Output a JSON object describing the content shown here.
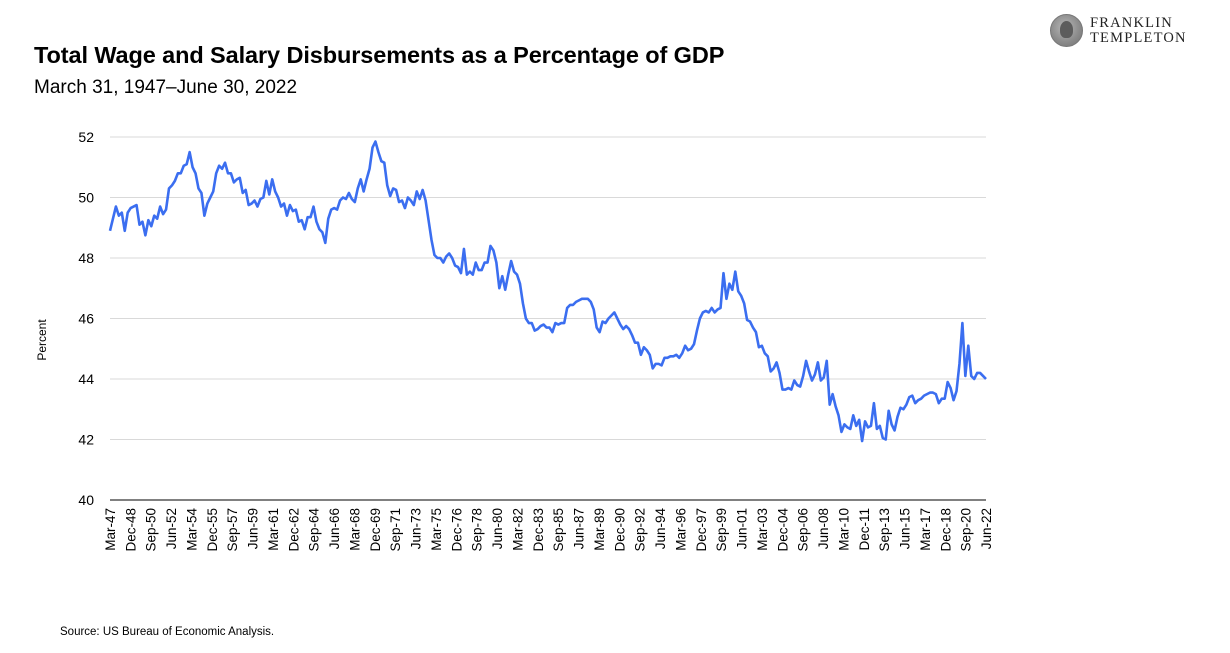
{
  "header": {
    "title": "Total Wage and Salary Disbursements as a Percentage of GDP",
    "subtitle": "March 31, 1947–June 30, 2022"
  },
  "logo": {
    "line1": "FRANKLIN",
    "line2": "TEMPLETON"
  },
  "footer": {
    "source": "Source: US Bureau of Economic Analysis."
  },
  "colors": {
    "line": "#3b6ef0",
    "grid": "#d9d9d9",
    "axis": "#000000"
  },
  "chart_data": {
    "type": "line",
    "title": "Total Wage and Salary Disbursements as a Percentage of GDP",
    "subtitle": "March 31, 1947–June 30, 2022",
    "xlabel": "",
    "ylabel": "Percent",
    "ylim": [
      40,
      52
    ],
    "yticks": [
      40,
      42,
      44,
      46,
      48,
      50,
      52
    ],
    "grid": true,
    "x_tick_labels": [
      "Mar-47",
      "Dec-48",
      "Sep-50",
      "Jun-52",
      "Mar-54",
      "Dec-55",
      "Sep-57",
      "Jun-59",
      "Mar-61",
      "Dec-62",
      "Sep-64",
      "Jun-66",
      "Mar-68",
      "Dec-69",
      "Sep-71",
      "Jun-73",
      "Mar-75",
      "Dec-76",
      "Sep-78",
      "Jun-80",
      "Mar-82",
      "Dec-83",
      "Sep-85",
      "Jun-87",
      "Mar-89",
      "Dec-90",
      "Sep-92",
      "Jun-94",
      "Mar-96",
      "Dec-97",
      "Sep-99",
      "Jun-01",
      "Mar-03",
      "Dec-04",
      "Sep-06",
      "Jun-08",
      "Mar-10",
      "Dec-11",
      "Sep-13",
      "Jun-15",
      "Mar-17",
      "Dec-18",
      "Sep-20",
      "Jun-22"
    ],
    "series": [
      {
        "x_range": [
          "1947-03-31",
          "2022-06-30"
        ],
        "values": [
          48.9,
          49.3,
          49.7,
          49.4,
          49.5,
          48.9,
          49.5,
          49.65,
          49.7,
          49.75,
          49.1,
          49.2,
          48.75,
          49.25,
          49.05,
          49.4,
          49.3,
          49.7,
          49.45,
          49.6,
          50.3,
          50.4,
          50.55,
          50.8,
          50.8,
          51.05,
          51.1,
          51.5,
          51.0,
          50.8,
          50.3,
          50.15,
          49.4,
          49.8,
          50.0,
          50.2,
          50.8,
          51.05,
          50.95,
          51.15,
          50.8,
          50.8,
          50.5,
          50.6,
          50.65,
          50.15,
          50.25,
          49.75,
          49.8,
          49.9,
          49.7,
          49.95,
          50.0,
          50.55,
          50.1,
          50.6,
          50.2,
          50.0,
          49.7,
          49.8,
          49.4,
          49.75,
          49.55,
          49.6,
          49.2,
          49.25,
          48.95,
          49.35,
          49.35,
          49.7,
          49.2,
          48.95,
          48.85,
          48.5,
          49.3,
          49.6,
          49.65,
          49.6,
          49.9,
          50.0,
          49.95,
          50.15,
          49.95,
          49.85,
          50.3,
          50.6,
          50.2,
          50.6,
          50.95,
          51.65,
          51.85,
          51.5,
          51.2,
          51.15,
          50.4,
          50.05,
          50.3,
          50.25,
          49.85,
          49.9,
          49.65,
          50.0,
          49.9,
          49.75,
          50.2,
          49.95,
          50.25,
          49.9,
          49.25,
          48.6,
          48.1,
          48.0,
          48.0,
          47.85,
          48.05,
          48.15,
          48.0,
          47.75,
          47.7,
          47.5,
          48.3,
          47.45,
          47.55,
          47.45,
          47.85,
          47.6,
          47.6,
          47.85,
          47.85,
          48.4,
          48.25,
          47.85,
          47.0,
          47.4,
          46.95,
          47.45,
          47.9,
          47.55,
          47.45,
          47.15,
          46.5,
          46.0,
          45.85,
          45.85,
          45.6,
          45.65,
          45.75,
          45.8,
          45.7,
          45.7,
          45.55,
          45.85,
          45.8,
          45.85,
          45.85,
          46.35,
          46.45,
          46.45,
          46.55,
          46.6,
          46.65,
          46.65,
          46.65,
          46.55,
          46.3,
          45.7,
          45.55,
          45.9,
          45.85,
          46.0,
          46.1,
          46.2,
          46.0,
          45.8,
          45.65,
          45.75,
          45.65,
          45.45,
          45.2,
          45.2,
          44.8,
          45.05,
          44.95,
          44.8,
          44.35,
          44.5,
          44.5,
          44.45,
          44.7,
          44.7,
          44.75,
          44.75,
          44.8,
          44.7,
          44.85,
          45.1,
          44.95,
          45.0,
          45.15,
          45.6,
          46.0,
          46.2,
          46.25,
          46.2,
          46.35,
          46.2,
          46.3,
          46.35,
          47.5,
          46.65,
          47.15,
          46.95,
          47.55,
          46.9,
          46.75,
          46.5,
          45.95,
          45.9,
          45.7,
          45.55,
          45.05,
          45.1,
          44.85,
          44.75,
          44.25,
          44.35,
          44.55,
          44.2,
          43.65,
          43.65,
          43.7,
          43.65,
          43.95,
          43.8,
          43.75,
          44.1,
          44.6,
          44.25,
          43.95,
          44.15,
          44.55,
          43.95,
          44.05,
          44.6,
          43.15,
          43.5,
          43.1,
          42.8,
          42.25,
          42.5,
          42.4,
          42.35,
          42.8,
          42.45,
          42.65,
          41.95,
          42.6,
          42.4,
          42.45,
          43.2,
          42.35,
          42.45,
          42.05,
          42.0,
          42.95,
          42.5,
          42.3,
          42.75,
          43.05,
          43.0,
          43.15,
          43.4,
          43.45,
          43.2,
          43.3,
          43.35,
          43.45,
          43.5,
          43.55,
          43.55,
          43.5,
          43.2,
          43.35,
          43.35,
          43.9,
          43.7,
          43.3,
          43.6,
          44.5,
          45.85,
          44.1,
          45.1,
          44.1,
          44.0,
          44.2,
          44.2,
          44.1,
          44.0
        ]
      }
    ]
  }
}
